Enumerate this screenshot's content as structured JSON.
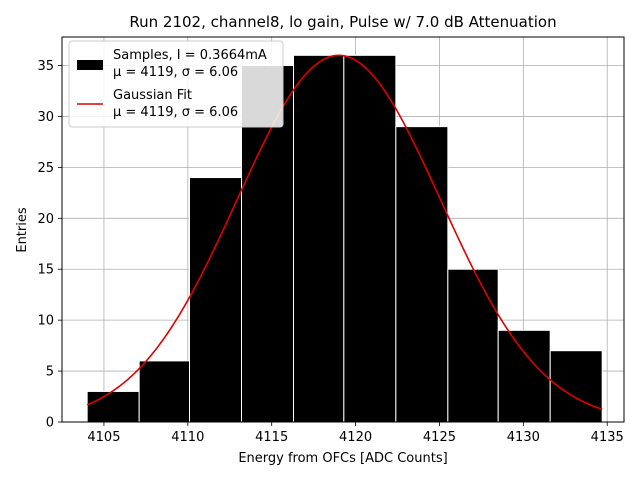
{
  "chart_data": {
    "type": "bar",
    "title": "Run 2102, channel8, lo gain, Pulse w/ 7.0 dB Attenuation",
    "xlabel": "Energy from OFCs [ADC Counts]",
    "ylabel": "Entries",
    "xlim": [
      4102.5,
      4136.0
    ],
    "ylim": [
      0,
      37.8
    ],
    "xticks": [
      4105,
      4110,
      4115,
      4120,
      4125,
      4130,
      4135
    ],
    "yticks": [
      0,
      5,
      10,
      15,
      20,
      25,
      30,
      35
    ],
    "grid": true,
    "legend_position": "top-left",
    "bins": [
      {
        "x0": 4104.0,
        "x1": 4107.1,
        "count": 3
      },
      {
        "x0": 4107.1,
        "x1": 4110.1,
        "count": 6
      },
      {
        "x0": 4110.1,
        "x1": 4113.2,
        "count": 24
      },
      {
        "x0": 4113.2,
        "x1": 4116.3,
        "count": 35
      },
      {
        "x0": 4116.3,
        "x1": 4119.3,
        "count": 36
      },
      {
        "x0": 4119.3,
        "x1": 4122.4,
        "count": 36
      },
      {
        "x0": 4122.4,
        "x1": 4125.5,
        "count": 29
      },
      {
        "x0": 4125.5,
        "x1": 4128.5,
        "count": 15
      },
      {
        "x0": 4128.5,
        "x1": 4131.6,
        "count": 9
      },
      {
        "x0": 4131.6,
        "x1": 4134.7,
        "count": 7
      }
    ],
    "series": [
      {
        "name": "Samples, I = 0.3664mA",
        "stats": "μ = 4119, σ = 6.06",
        "color": "#000000",
        "kind": "histogram"
      },
      {
        "name": "Gaussian Fit",
        "stats": "μ = 4119, σ = 6.06",
        "color": "#e00000",
        "kind": "line",
        "mu": 4119.0,
        "sigma": 6.06,
        "amplitude": 36.0,
        "x_range": [
          4104.0,
          4134.7
        ]
      }
    ]
  }
}
